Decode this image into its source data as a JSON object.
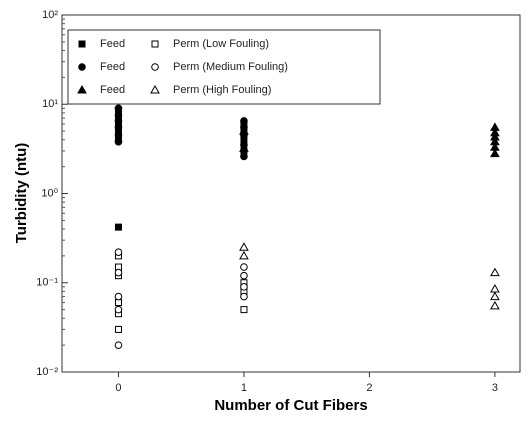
{
  "chart_data": {
    "type": "scatter",
    "xlabel": "Number of Cut Fibers",
    "ylabel": "Turbidity (ntu)",
    "xlim": [
      -0.45,
      3.2
    ],
    "xticks": [
      0,
      1,
      2,
      3
    ],
    "ylim": [
      0.01,
      100
    ],
    "ylog": true,
    "yticks": [
      {
        "value": 100,
        "label": "10²"
      },
      {
        "value": 10,
        "label": "10¹"
      },
      {
        "value": 1,
        "label": "10⁰"
      },
      {
        "value": 0.1,
        "label": "10⁻¹"
      },
      {
        "value": 0.01,
        "label": "10⁻²"
      }
    ],
    "legend": "upper left",
    "series": [
      {
        "name": "Feed",
        "color": "#000000",
        "marker": "square",
        "filled": true,
        "x": [
          0,
          0,
          0,
          0,
          0,
          0,
          1,
          1,
          1,
          1
        ],
        "values": [
          0.42,
          4,
          5,
          6,
          7,
          8,
          3,
          4,
          5,
          6
        ]
      },
      {
        "name": "Perm (Low Fouling)",
        "color": "#000000",
        "marker": "square",
        "filled": false,
        "x": [
          0,
          0,
          0,
          0,
          0,
          0,
          1,
          1,
          1
        ],
        "values": [
          0.03,
          0.045,
          0.06,
          0.12,
          0.15,
          0.2,
          0.05,
          0.08,
          0.1
        ]
      },
      {
        "name": "Feed",
        "color": "#000000",
        "marker": "circle",
        "filled": true,
        "x": [
          0,
          0,
          0,
          0,
          0,
          0,
          1,
          1,
          1,
          1,
          1
        ],
        "values": [
          3.8,
          4.5,
          5.5,
          6.5,
          7.5,
          9,
          2.6,
          3.5,
          4.5,
          5.5,
          6.5
        ]
      },
      {
        "name": "Perm (Medium Fouling)",
        "color": "#000000",
        "marker": "circle",
        "filled": false,
        "x": [
          0,
          0,
          0,
          0,
          0,
          1,
          1,
          1,
          1
        ],
        "values": [
          0.02,
          0.05,
          0.07,
          0.13,
          0.22,
          0.07,
          0.09,
          0.12,
          0.15
        ]
      },
      {
        "name": "Feed",
        "color": "#000000",
        "marker": "triangle",
        "filled": true,
        "x": [
          1,
          1,
          3,
          3,
          3,
          3,
          3,
          3
        ],
        "values": [
          3.2,
          5,
          2.8,
          3.3,
          3.8,
          4.3,
          4.8,
          5.5
        ]
      },
      {
        "name": "Perm (High Fouling)",
        "color": "#000000",
        "marker": "triangle",
        "filled": false,
        "x": [
          1,
          1,
          3,
          3,
          3,
          3
        ],
        "values": [
          0.2,
          0.25,
          0.055,
          0.07,
          0.085,
          0.13
        ]
      }
    ]
  }
}
